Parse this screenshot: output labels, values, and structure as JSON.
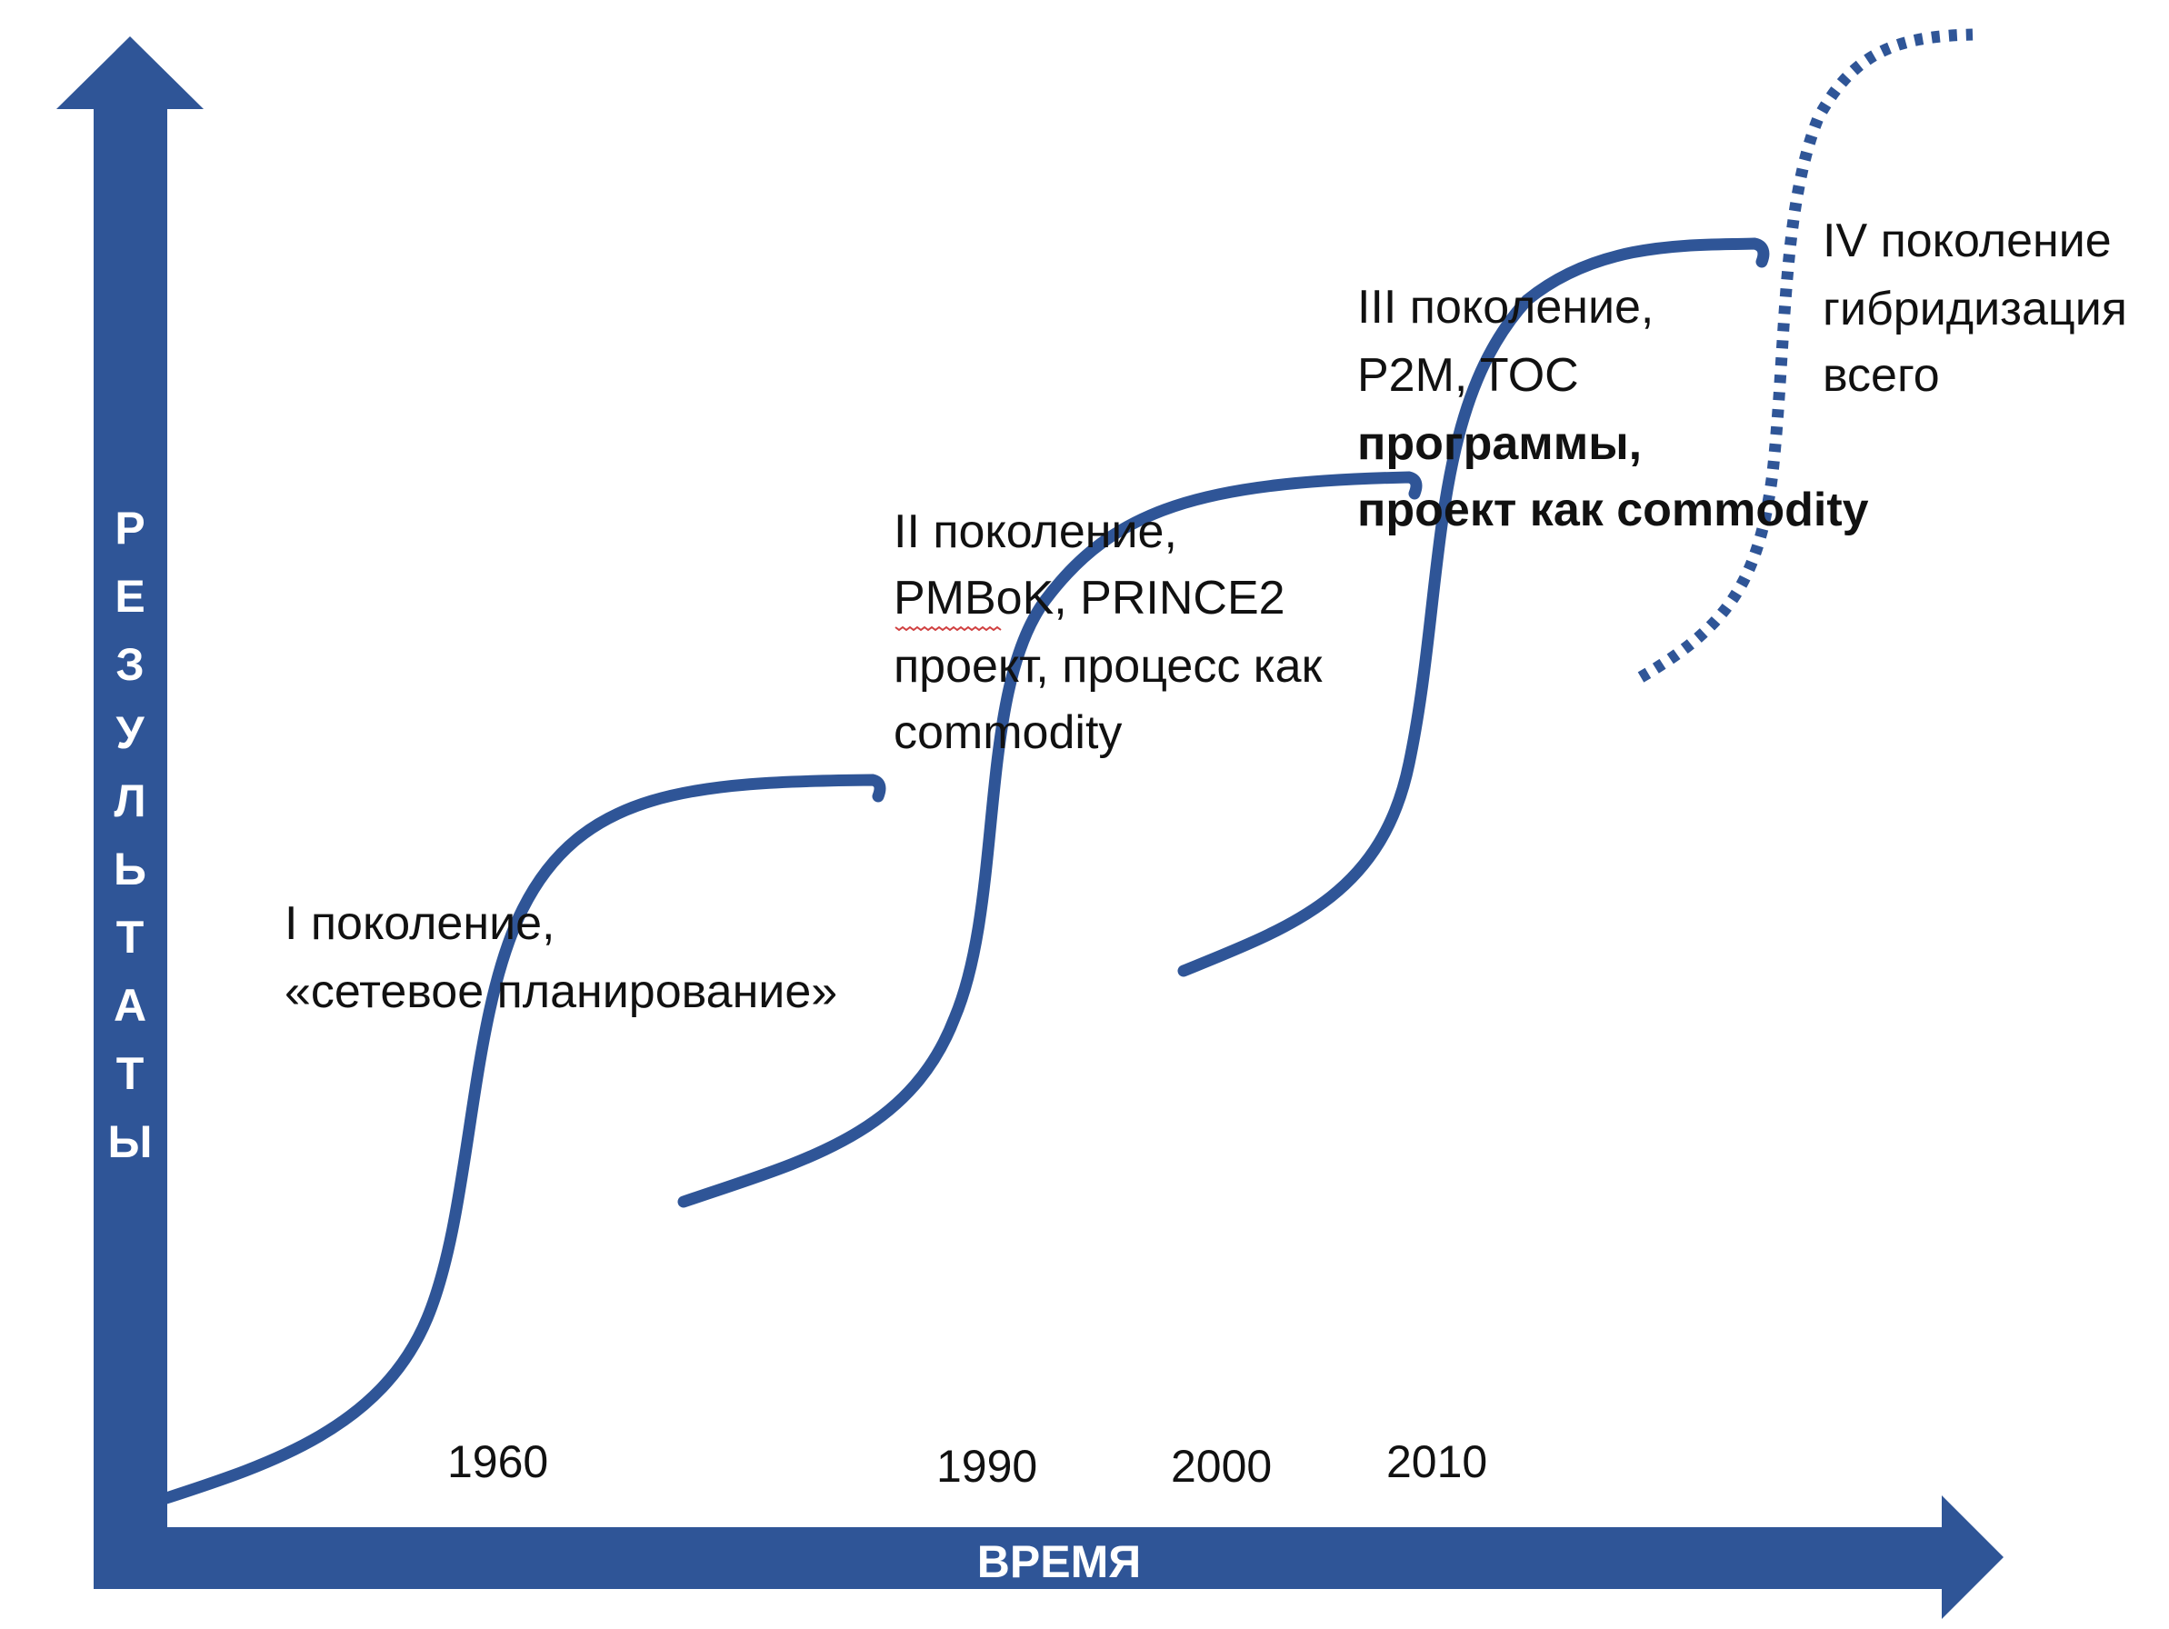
{
  "colors": {
    "axis": "#2f5597",
    "curve": "#2f5597",
    "text": "#111111",
    "axis_text": "#ffffff"
  },
  "axes": {
    "y_label": "РЕЗУЛЬТАТЫ",
    "x_label": "ВРЕМЯ"
  },
  "years": [
    "1960",
    "1990",
    "2000",
    "2010"
  ],
  "generations": [
    {
      "lines": [
        "I поколение,",
        "«сетевое планирование»"
      ],
      "bold_lines": []
    },
    {
      "lines": [
        "II поколение,",
        "PMBoK, PRINCE2",
        "проект, процесс как",
        "commodity"
      ],
      "bold_lines": []
    },
    {
      "lines": [
        "III поколение,",
        "P2M, TOC"
      ],
      "bold_lines": [
        "программы,",
        "проект как commodity"
      ]
    },
    {
      "lines": [
        "IV поколение",
        "гибридизация",
        "всего"
      ],
      "bold_lines": []
    }
  ],
  "curves": [
    {
      "style": "solid"
    },
    {
      "style": "solid"
    },
    {
      "style": "solid"
    },
    {
      "style": "dotted"
    }
  ]
}
